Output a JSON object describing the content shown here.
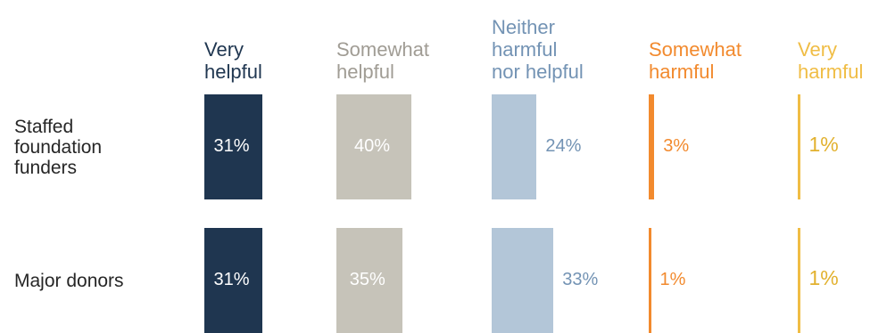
{
  "chart_data": {
    "type": "bar",
    "orientation": "horizontal-small-multiples",
    "categories": [
      "Staffed foundation funders",
      "Major donors"
    ],
    "category_label_lines": [
      [
        "Staffed",
        "foundation",
        "funders"
      ],
      [
        "Major donors"
      ]
    ],
    "series": [
      {
        "name": "Very helpful",
        "header_lines": [
          "Very",
          "helpful"
        ],
        "color": "#1f3650",
        "header_color": "#1f3650",
        "label_color": "#ffffff",
        "label_inside": true,
        "values": [
          31,
          31
        ],
        "labels": [
          "31%",
          "31%"
        ]
      },
      {
        "name": "Somewhat helpful",
        "header_lines": [
          "Somewhat",
          "helpful"
        ],
        "color": "#c6c3b9",
        "header_color": "#a09c94",
        "label_color": "#ffffff",
        "label_inside": true,
        "values": [
          40,
          35
        ],
        "labels": [
          "40%",
          "35%"
        ]
      },
      {
        "name": "Neither harmful nor helpful",
        "header_lines": [
          "Neither",
          "harmful",
          "nor helpful"
        ],
        "color": "#b3c6d8",
        "header_color": "#7393b4",
        "label_color": "#7393b4",
        "label_inside": false,
        "values": [
          24,
          33
        ],
        "labels": [
          "24%",
          "33%"
        ]
      },
      {
        "name": "Somewhat harmful",
        "header_lines": [
          "Somewhat",
          "harmful"
        ],
        "color": "#f28a2e",
        "header_color": "#f28a2e",
        "label_color": "#f28a2e",
        "label_inside": false,
        "values": [
          3,
          1
        ],
        "labels": [
          "3%",
          "1%"
        ]
      },
      {
        "name": "Very harmful",
        "header_lines": [
          "Very",
          "harmful"
        ],
        "color": "#f0bd45",
        "header_color": "#f0bd45",
        "label_color": "#e2b12e",
        "label_inside": false,
        "values": [
          1,
          1
        ],
        "labels": [
          "1%",
          "1%"
        ]
      }
    ],
    "value_unit": "%",
    "xlim": [
      0,
      100
    ],
    "grid": false,
    "legend": "column headers at top"
  }
}
